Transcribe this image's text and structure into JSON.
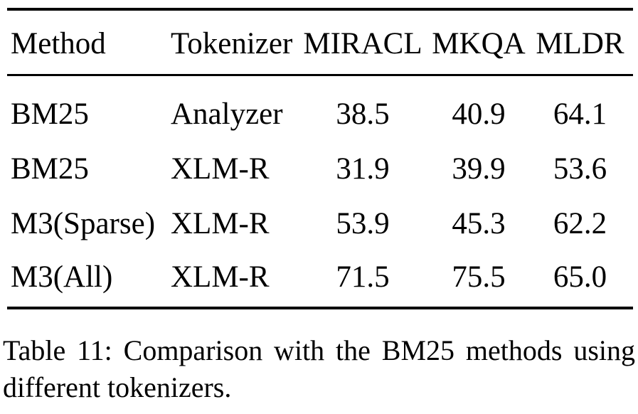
{
  "table": {
    "headers": [
      "Method",
      "Tokenizer",
      "MIRACL",
      "MKQA",
      "MLDR"
    ],
    "rows": [
      [
        "BM25",
        "Analyzer",
        "38.5",
        "40.9",
        "64.1"
      ],
      [
        "BM25",
        "XLM-R",
        "31.9",
        "39.9",
        "53.6"
      ],
      [
        "M3(Sparse)",
        "XLM-R",
        "53.9",
        "45.3",
        "62.2"
      ],
      [
        "M3(All)",
        "XLM-R",
        "71.5",
        "75.5",
        "65.0"
      ]
    ]
  },
  "caption": {
    "label": "Table 11:",
    "text": "Comparison with the BM25 methods using different tokenizers."
  },
  "style": {
    "text_color": "#000000",
    "background": "#ffffff",
    "rule_color": "#000000"
  }
}
